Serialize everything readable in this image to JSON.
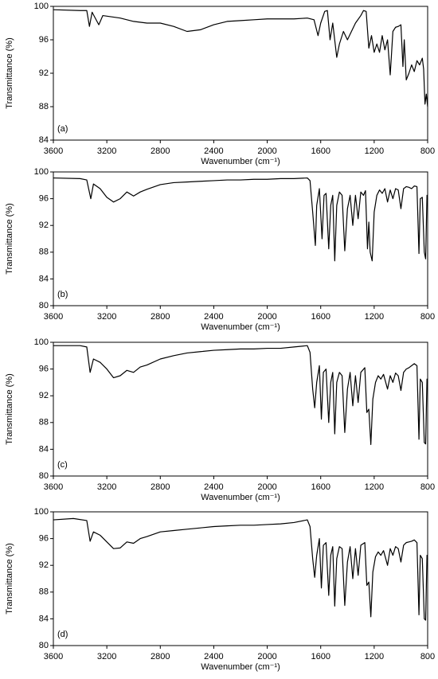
{
  "chart_data": [
    {
      "type": "line",
      "label": "(a)",
      "xlabel": "Wavenumber (cm⁻¹)",
      "ylabel": "Transmittance (%)",
      "color": "#000000",
      "xlim": [
        3600,
        800
      ],
      "xticks": [
        3600,
        3200,
        2800,
        2400,
        2000,
        1600,
        1200,
        800
      ],
      "ylim": [
        84,
        100
      ],
      "yticks": [
        84,
        88,
        92,
        96,
        100
      ],
      "x": [
        3600,
        3400,
        3350,
        3330,
        3310,
        3260,
        3230,
        3100,
        3000,
        2900,
        2800,
        2700,
        2600,
        2500,
        2400,
        2300,
        2200,
        2100,
        2000,
        1900,
        1800,
        1700,
        1650,
        1620,
        1600,
        1570,
        1550,
        1530,
        1510,
        1480,
        1460,
        1430,
        1400,
        1370,
        1340,
        1300,
        1280,
        1260,
        1240,
        1220,
        1200,
        1180,
        1160,
        1140,
        1120,
        1100,
        1080,
        1060,
        1040,
        1020,
        1000,
        985,
        975,
        960,
        940,
        920,
        900,
        880,
        860,
        840,
        830,
        820,
        810,
        800
      ],
      "values": [
        99.6,
        99.5,
        99.5,
        97.6,
        99.3,
        97.8,
        98.9,
        98.6,
        98.2,
        98.0,
        98.0,
        97.6,
        97.0,
        97.2,
        97.8,
        98.2,
        98.3,
        98.4,
        98.5,
        98.5,
        98.5,
        98.6,
        98.4,
        96.5,
        98.0,
        99.4,
        99.5,
        96.0,
        98.0,
        93.9,
        95.5,
        97.0,
        96.0,
        97.0,
        98.0,
        98.9,
        99.5,
        99.4,
        95.0,
        96.5,
        94.5,
        95.5,
        94.5,
        96.5,
        94.8,
        96.0,
        91.8,
        97.0,
        97.5,
        97.6,
        97.8,
        92.8,
        96.0,
        91.2,
        92.0,
        93.0,
        92.2,
        93.5,
        93.0,
        93.8,
        92.5,
        88.3,
        89.5,
        88.0
      ]
    },
    {
      "type": "line",
      "label": "(b)",
      "xlabel": "Wavenumber (cm⁻¹)",
      "ylabel": "Transmittance (%)",
      "color": "#000000",
      "xlim": [
        3600,
        800
      ],
      "xticks": [
        3600,
        3200,
        2800,
        2400,
        2000,
        1600,
        1200,
        800
      ],
      "ylim": [
        80,
        100
      ],
      "yticks": [
        80,
        84,
        88,
        92,
        96,
        100
      ],
      "x": [
        3600,
        3400,
        3350,
        3320,
        3300,
        3250,
        3200,
        3150,
        3100,
        3050,
        3000,
        2950,
        2900,
        2800,
        2700,
        2600,
        2500,
        2400,
        2300,
        2200,
        2100,
        2000,
        1900,
        1800,
        1700,
        1680,
        1660,
        1640,
        1630,
        1610,
        1590,
        1575,
        1560,
        1540,
        1525,
        1510,
        1495,
        1480,
        1460,
        1440,
        1420,
        1400,
        1380,
        1360,
        1340,
        1320,
        1300,
        1280,
        1265,
        1250,
        1240,
        1230,
        1215,
        1200,
        1180,
        1160,
        1140,
        1120,
        1100,
        1080,
        1060,
        1040,
        1020,
        1000,
        980,
        960,
        940,
        920,
        900,
        880,
        865,
        855,
        840,
        825,
        815,
        805,
        800
      ],
      "values": [
        99.1,
        99.0,
        98.8,
        96.0,
        98.2,
        97.5,
        96.2,
        95.5,
        96.0,
        97.0,
        96.4,
        97.0,
        97.4,
        98.1,
        98.4,
        98.5,
        98.6,
        98.7,
        98.8,
        98.8,
        98.9,
        98.9,
        99.0,
        99.0,
        99.1,
        98.7,
        94.0,
        89.0,
        95.0,
        97.5,
        90.0,
        96.5,
        96.8,
        88.5,
        95.0,
        96.5,
        86.7,
        95.0,
        97.0,
        96.5,
        88.2,
        94.5,
        96.5,
        92.0,
        96.5,
        93.0,
        97.0,
        96.5,
        97.2,
        88.5,
        92.5,
        88.0,
        86.7,
        94.0,
        96.5,
        97.3,
        96.8,
        97.5,
        95.5,
        97.3,
        96.0,
        97.5,
        97.3,
        94.5,
        97.5,
        97.8,
        97.7,
        97.5,
        97.9,
        97.8,
        87.8,
        96.0,
        96.2,
        88.0,
        87.0,
        96.5,
        96.0
      ]
    },
    {
      "type": "line",
      "label": "(c)",
      "xlabel": "Wavenumber (cm⁻¹)",
      "ylabel": "Transmittance (%)",
      "color": "#000000",
      "xlim": [
        3600,
        800
      ],
      "xticks": [
        3600,
        3200,
        2800,
        2400,
        2000,
        1600,
        1200,
        800
      ],
      "ylim": [
        80,
        100
      ],
      "yticks": [
        80,
        84,
        88,
        92,
        96,
        100
      ],
      "x": [
        3600,
        3400,
        3350,
        3325,
        3300,
        3250,
        3200,
        3150,
        3100,
        3050,
        3000,
        2950,
        2900,
        2800,
        2700,
        2600,
        2500,
        2400,
        2300,
        2200,
        2100,
        2000,
        1900,
        1800,
        1700,
        1680,
        1660,
        1645,
        1630,
        1610,
        1595,
        1580,
        1560,
        1540,
        1525,
        1510,
        1495,
        1480,
        1460,
        1440,
        1420,
        1400,
        1380,
        1360,
        1340,
        1320,
        1300,
        1270,
        1255,
        1240,
        1225,
        1210,
        1190,
        1170,
        1150,
        1130,
        1100,
        1080,
        1060,
        1040,
        1020,
        1000,
        980,
        960,
        940,
        920,
        900,
        880,
        865,
        855,
        840,
        825,
        815,
        805,
        800
      ],
      "values": [
        99.5,
        99.5,
        99.3,
        95.5,
        97.5,
        97.0,
        96.0,
        94.7,
        95.0,
        95.8,
        95.5,
        96.3,
        96.6,
        97.5,
        98.0,
        98.4,
        98.6,
        98.8,
        98.9,
        99.0,
        99.0,
        99.1,
        99.1,
        99.3,
        99.5,
        98.5,
        93.0,
        90.2,
        94.0,
        96.5,
        88.5,
        95.5,
        96.0,
        88.0,
        94.0,
        95.5,
        86.3,
        94.0,
        95.5,
        95.0,
        86.5,
        93.0,
        95.5,
        90.5,
        95.0,
        91.0,
        95.5,
        96.2,
        89.5,
        90.0,
        84.7,
        91.5,
        94.0,
        95.0,
        94.5,
        95.2,
        93.0,
        95.0,
        94.0,
        95.4,
        95.0,
        92.8,
        95.5,
        96.0,
        96.2,
        96.5,
        96.8,
        96.5,
        85.5,
        94.5,
        94.0,
        85.0,
        84.8,
        94.5,
        94.0
      ]
    },
    {
      "type": "line",
      "label": "(d)",
      "xlabel": "Wavenumber (cm⁻¹)",
      "ylabel": "Transmittance (%)",
      "color": "#000000",
      "xlim": [
        3600,
        800
      ],
      "xticks": [
        3600,
        3200,
        2800,
        2400,
        2000,
        1600,
        1200,
        800
      ],
      "ylim": [
        80,
        100
      ],
      "yticks": [
        80,
        84,
        88,
        92,
        96,
        100
      ],
      "x": [
        3600,
        3450,
        3350,
        3325,
        3300,
        3250,
        3200,
        3150,
        3100,
        3050,
        3000,
        2950,
        2900,
        2800,
        2700,
        2600,
        2500,
        2400,
        2300,
        2200,
        2100,
        2000,
        1900,
        1800,
        1700,
        1680,
        1660,
        1645,
        1630,
        1610,
        1595,
        1580,
        1560,
        1540,
        1525,
        1510,
        1495,
        1480,
        1460,
        1440,
        1420,
        1400,
        1380,
        1360,
        1340,
        1320,
        1300,
        1270,
        1255,
        1240,
        1225,
        1210,
        1190,
        1170,
        1150,
        1130,
        1100,
        1080,
        1060,
        1040,
        1020,
        1000,
        980,
        960,
        940,
        920,
        900,
        880,
        865,
        855,
        840,
        825,
        815,
        805,
        800
      ],
      "values": [
        98.8,
        99.0,
        98.7,
        95.6,
        97.0,
        96.5,
        95.5,
        94.5,
        94.6,
        95.5,
        95.3,
        96.0,
        96.3,
        97.0,
        97.2,
        97.4,
        97.6,
        97.8,
        97.9,
        98.0,
        98.0,
        98.1,
        98.2,
        98.4,
        98.8,
        97.8,
        93.0,
        90.2,
        93.5,
        96.0,
        88.6,
        95.0,
        95.4,
        87.5,
        93.5,
        94.8,
        85.9,
        93.0,
        94.8,
        94.5,
        86.0,
        92.5,
        94.8,
        90.0,
        94.5,
        90.5,
        95.0,
        95.4,
        89.0,
        89.5,
        84.3,
        91.0,
        93.3,
        94.0,
        93.5,
        94.2,
        92.0,
        94.5,
        93.5,
        94.8,
        94.5,
        92.5,
        95.0,
        95.4,
        95.5,
        95.6,
        95.8,
        95.4,
        84.6,
        93.5,
        93.0,
        84.0,
        83.8,
        93.5,
        93.0
      ]
    }
  ]
}
